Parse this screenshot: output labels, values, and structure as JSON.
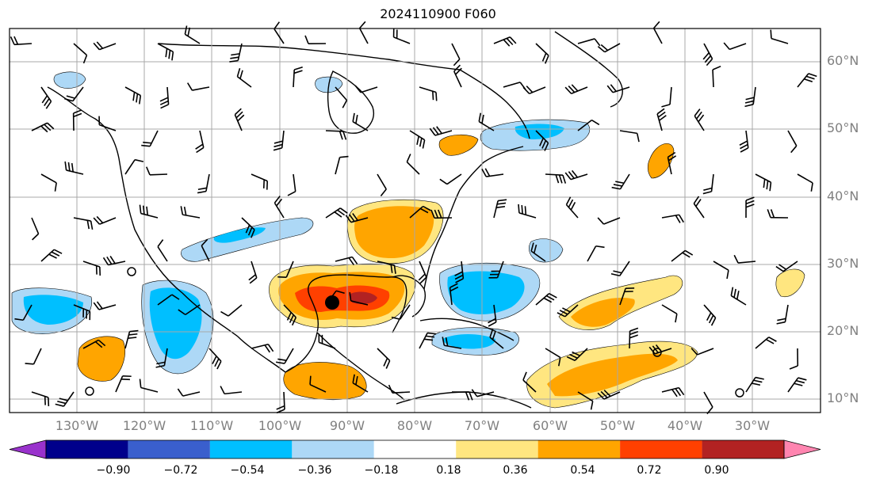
{
  "title": "2024110900 F060",
  "map": {
    "lat_labels": [
      "60°N",
      "50°N",
      "40°N",
      "30°N",
      "20°N",
      "10°N"
    ],
    "lon_labels": [
      "130°W",
      "120°W",
      "110°W",
      "100°W",
      "90°W",
      "80°W",
      "70°W",
      "60°W",
      "50°W",
      "40°W",
      "30°W"
    ]
  },
  "colorbar": {
    "ticks": [
      "−0.90",
      "−0.72",
      "−0.54",
      "−0.36",
      "−0.18",
      "0.18",
      "0.36",
      "0.54",
      "0.72",
      "0.90"
    ],
    "colors": [
      "#9932cc",
      "#00008b",
      "#3a5fcd",
      "#00bfff",
      "#add8f6",
      "#ffffff",
      "#ffe680",
      "#ffa500",
      "#ff4000",
      "#b22222",
      "#ff85b0"
    ]
  },
  "colors": {
    "neg_light": "#add8f6",
    "neg_mid": "#00bfff",
    "neg_strong": "#3a5fcd",
    "pos_light": "#ffe680",
    "pos_mid": "#ffa500",
    "pos_strong": "#ff4000",
    "pos_max": "#b22222"
  }
}
